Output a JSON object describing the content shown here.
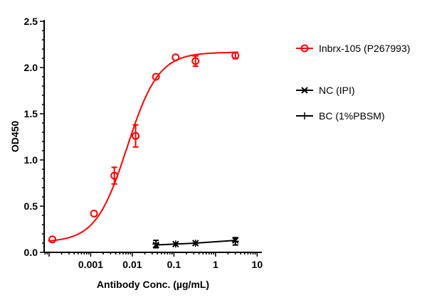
{
  "chart_data": {
    "type": "scatter",
    "title": "",
    "xlabel": "Antibody Conc. (µg/mL)",
    "ylabel": "OD450",
    "xscale": "log",
    "xlim": [
      7.6e-05,
      13
    ],
    "ylim": [
      0,
      2.5
    ],
    "xticks": [
      0.001,
      0.01,
      0.1,
      1,
      10
    ],
    "xtick_labels": [
      "0.001",
      "0.01",
      "0.1",
      "1",
      "10"
    ],
    "yticks": [
      0,
      0.5,
      1,
      1.5,
      2,
      2.5
    ],
    "ytick_labels": [
      "0.0",
      "0.5",
      "1.0",
      "1.5",
      "2.0",
      "2.5"
    ],
    "grid": false,
    "legend_position": "right",
    "series": [
      {
        "name": "Inbrx-105 (P267993)",
        "color": "#ff0000",
        "marker": "open-circle",
        "x": [
          0.00012,
          0.0012,
          0.0037,
          0.012,
          0.037,
          0.11,
          0.33,
          3.0
        ],
        "y": [
          0.14,
          0.42,
          0.83,
          1.26,
          1.9,
          2.11,
          2.07,
          2.13
        ],
        "error": [
          0,
          0,
          0.09,
          0.12,
          0,
          0,
          0.055,
          0.035
        ],
        "fit": {
          "model": "4PL",
          "bottom": 0.11,
          "top": 2.165,
          "ec50": 0.0075,
          "hill": 1.15
        }
      },
      {
        "name": "NC (IPI)",
        "color": "#000000",
        "marker": "x",
        "x": [
          0.037,
          0.11,
          0.33,
          3.0
        ],
        "y": [
          0.08,
          0.09,
          0.1,
          0.13
        ]
      },
      {
        "name": "BC (1%PBSM)",
        "color": "#000000",
        "marker": "plus",
        "x": [
          0.037,
          0.11,
          0.33,
          3.0
        ],
        "y": [
          0.09,
          0.09,
          0.1,
          0.12
        ],
        "error": [
          0.04,
          0,
          0,
          0.04
        ]
      }
    ]
  }
}
